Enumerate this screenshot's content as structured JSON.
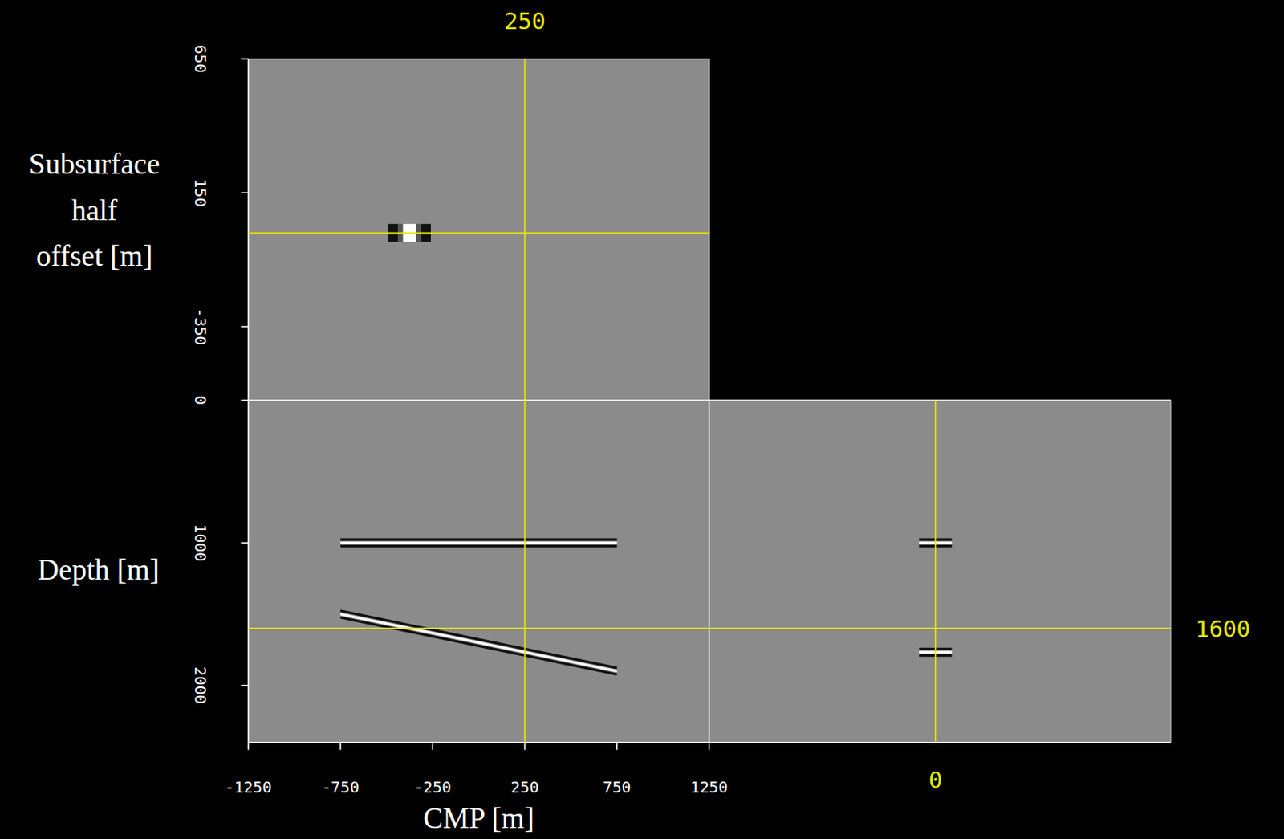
{
  "chart_data": {
    "type": "seismic_cube",
    "cmp": {
      "label": "CMP [m]",
      "lim": [
        -1250,
        1250
      ],
      "ticks": [
        -1250,
        -750,
        -250,
        250,
        750,
        1250
      ]
    },
    "offset": {
      "label": "Subsurface half offset [m]",
      "lim": [
        -625,
        650
      ],
      "ticks": [
        650,
        150,
        -350
      ]
    },
    "depth": {
      "label": "Depth [m]",
      "lim": [
        0,
        2400
      ],
      "ticks": [
        0,
        1000,
        2000
      ]
    },
    "slices": {
      "cmp": 250,
      "depth": 1600,
      "offset": 0
    },
    "reflectors": [
      {
        "cmp": [
          -750,
          750
        ],
        "depth": [
          1000,
          1000
        ]
      },
      {
        "cmp": [
          -750,
          750
        ],
        "depth": [
          1500,
          1900
        ]
      }
    ],
    "cmp_offset_events": [
      {
        "cmp": -375,
        "offset": 0
      }
    ],
    "offset_depth_events": [
      {
        "offset": 0,
        "depth": 1000
      },
      {
        "offset": 0,
        "depth": 1767
      }
    ]
  }
}
